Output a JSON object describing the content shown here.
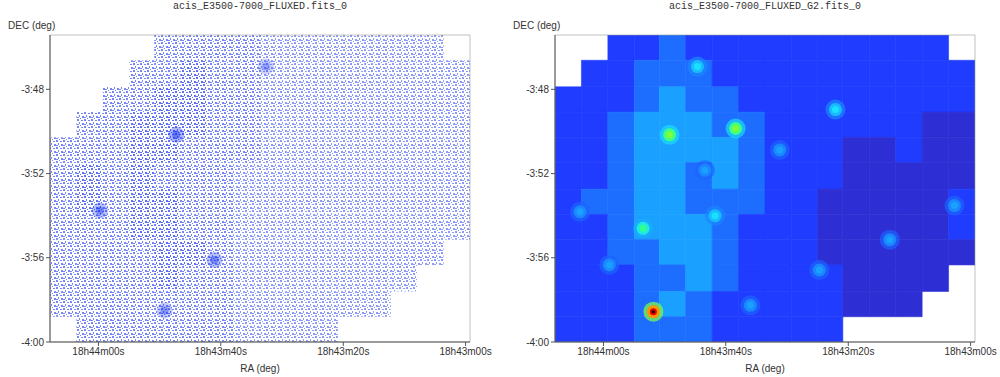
{
  "chart_data": [
    {
      "type": "heatmap",
      "title": "acis_E3500-7000_FLUXED.fits_0",
      "x_label": "RA (deg)",
      "y_label": "DEC (deg)",
      "color": "#1a35f0",
      "xlim": [
        281.033,
        280.747
      ],
      "ylim": [
        -4.0,
        -3.757
      ],
      "xticks": [
        {
          "value": 281.0,
          "label": "18h44m00s"
        },
        {
          "value": 280.9167,
          "label": "18h43m40s"
        },
        {
          "value": 280.8333,
          "label": "18h43m20s"
        },
        {
          "value": 280.75,
          "label": "18h43m00s"
        }
      ],
      "yticks": [
        {
          "value": -3.8,
          "label": "-3:48"
        },
        {
          "value": -3.8667,
          "label": "-3:52"
        },
        {
          "value": -3.9333,
          "label": "-3:56"
        },
        {
          "value": -4.0,
          "label": "-4:00"
        }
      ],
      "value_range": [
        0,
        10
      ],
      "x_edges": [
        281.033,
        281.015,
        280.997,
        280.979,
        280.962,
        280.944,
        280.926,
        280.908,
        280.89,
        280.872,
        280.854,
        280.837,
        280.819,
        280.801,
        280.783,
        280.765,
        280.747
      ],
      "y_edges": [
        -3.757,
        -3.777,
        -3.798,
        -3.818,
        -3.838,
        -3.858,
        -3.879,
        -3.899,
        -3.919,
        -3.939,
        -3.96,
        -3.98,
        -4.0
      ],
      "cells": [
        [
          null,
          null,
          null,
          null,
          6,
          6,
          6,
          6,
          5,
          5,
          5,
          5,
          5,
          5,
          5,
          null
        ],
        [
          null,
          null,
          null,
          6,
          6,
          7,
          6,
          6,
          5,
          5,
          5,
          5,
          5,
          5,
          5,
          5
        ],
        [
          null,
          null,
          6,
          6,
          7,
          7,
          6,
          6,
          5,
          5,
          5,
          5,
          5,
          5,
          5,
          5
        ],
        [
          null,
          6,
          6,
          7,
          7,
          7,
          6,
          6,
          5,
          5,
          5,
          5,
          5,
          5,
          5,
          5
        ],
        [
          6,
          6,
          6,
          7,
          7,
          6,
          6,
          6,
          5,
          5,
          5,
          5,
          5,
          5,
          5,
          5
        ],
        [
          6,
          7,
          6,
          7,
          6,
          6,
          6,
          5,
          5,
          5,
          5,
          5,
          5,
          5,
          5,
          5
        ],
        [
          6,
          7,
          6,
          7,
          7,
          6,
          6,
          5,
          5,
          5,
          5,
          5,
          5,
          5,
          5,
          5
        ],
        [
          6,
          6,
          6,
          7,
          7,
          6,
          6,
          5,
          5,
          5,
          5,
          5,
          5,
          5,
          5,
          5
        ],
        [
          6,
          6,
          6,
          6,
          7,
          7,
          6,
          5,
          5,
          5,
          5,
          5,
          5,
          5,
          5,
          null
        ],
        [
          6,
          6,
          6,
          6,
          7,
          6,
          6,
          5,
          5,
          5,
          5,
          5,
          5,
          5,
          null,
          null
        ],
        [
          6,
          6,
          6,
          6,
          6,
          6,
          6,
          5,
          5,
          5,
          5,
          5,
          5,
          null,
          null,
          null
        ],
        [
          null,
          6,
          6,
          6,
          6,
          6,
          6,
          5,
          5,
          5,
          5,
          null,
          null,
          null,
          null,
          null
        ]
      ],
      "sources": [
        {
          "ra": 280.947,
          "dec": -3.836,
          "value": 8
        },
        {
          "ra": 280.999,
          "dec": -3.896,
          "value": 7
        },
        {
          "ra": 280.921,
          "dec": -3.935,
          "value": 7
        },
        {
          "ra": 280.955,
          "dec": -3.975,
          "value": 6
        },
        {
          "ra": 280.886,
          "dec": -3.782,
          "value": 5
        }
      ]
    },
    {
      "type": "heatmap",
      "title": "acis_E3500-7000_FLUXED_G2.fits_0",
      "x_label": "RA (deg)",
      "y_label": "DEC (deg)",
      "xlim": [
        281.033,
        280.747
      ],
      "ylim": [
        -4.0,
        -3.757
      ],
      "xticks": [
        {
          "value": 281.0,
          "label": "18h44m00s"
        },
        {
          "value": 280.9167,
          "label": "18h43m40s"
        },
        {
          "value": 280.8333,
          "label": "18h43m20s"
        },
        {
          "value": 280.75,
          "label": "18h43m00s"
        }
      ],
      "yticks": [
        {
          "value": -3.8,
          "label": "-3:48"
        },
        {
          "value": -3.8667,
          "label": "-3:52"
        },
        {
          "value": -3.9333,
          "label": "-3:56"
        },
        {
          "value": -4.0,
          "label": "-4:00"
        }
      ],
      "value_range": [
        0,
        10
      ],
      "x_edges": [
        281.033,
        281.015,
        280.997,
        280.979,
        280.962,
        280.944,
        280.926,
        280.908,
        280.89,
        280.872,
        280.854,
        280.837,
        280.819,
        280.801,
        280.783,
        280.765,
        280.747
      ],
      "y_edges": [
        -3.757,
        -3.777,
        -3.798,
        -3.818,
        -3.838,
        -3.858,
        -3.879,
        -3.899,
        -3.919,
        -3.939,
        -3.96,
        -3.98,
        -4.0
      ],
      "cells": [
        [
          null,
          null,
          2,
          2,
          3,
          2,
          2,
          2,
          2,
          2,
          2,
          2,
          2,
          2,
          2,
          null
        ],
        [
          null,
          2,
          2,
          3,
          3,
          3,
          2,
          2,
          2,
          2,
          2,
          2,
          2,
          2,
          2,
          2
        ],
        [
          2,
          2,
          2,
          3,
          4,
          3,
          3,
          2,
          2,
          2,
          2,
          2,
          2,
          2,
          2,
          2
        ],
        [
          2,
          2,
          3,
          4,
          4,
          4,
          3,
          3,
          2,
          2,
          2,
          2,
          2,
          2,
          1,
          1
        ],
        [
          2,
          2,
          3,
          4,
          4,
          4,
          4,
          3,
          2,
          2,
          2,
          1,
          1,
          2,
          1,
          1
        ],
        [
          2,
          2,
          3,
          4,
          4,
          3,
          4,
          3,
          2,
          2,
          2,
          1,
          1,
          1,
          1,
          1
        ],
        [
          2,
          3,
          3,
          4,
          4,
          3,
          3,
          3,
          2,
          2,
          1,
          1,
          1,
          1,
          1,
          2
        ],
        [
          2,
          2,
          3,
          4,
          4,
          4,
          3,
          2,
          2,
          2,
          1,
          1,
          1,
          1,
          1,
          2
        ],
        [
          2,
          2,
          3,
          3,
          4,
          4,
          3,
          2,
          2,
          2,
          1,
          1,
          1,
          1,
          1,
          1
        ],
        [
          2,
          2,
          2,
          3,
          3,
          4,
          3,
          2,
          2,
          2,
          2,
          1,
          1,
          1,
          1,
          null
        ],
        [
          2,
          2,
          2,
          3,
          4,
          3,
          2,
          2,
          2,
          2,
          2,
          1,
          1,
          1,
          null,
          null
        ],
        [
          2,
          2,
          2,
          3,
          3,
          3,
          2,
          2,
          2,
          2,
          2,
          null,
          null,
          null,
          null,
          null
        ]
      ],
      "sources": [
        {
          "ra": 280.966,
          "dec": -3.976,
          "value": 10
        },
        {
          "ra": 280.955,
          "dec": -3.836,
          "value": 7
        },
        {
          "ra": 280.91,
          "dec": -3.831,
          "value": 7
        },
        {
          "ra": 280.936,
          "dec": -3.782,
          "value": 5
        },
        {
          "ra": 280.842,
          "dec": -3.816,
          "value": 5
        },
        {
          "ra": 280.973,
          "dec": -3.91,
          "value": 6
        },
        {
          "ra": 280.761,
          "dec": -3.892,
          "value": 4
        },
        {
          "ra": 281.016,
          "dec": -3.897,
          "value": 4
        },
        {
          "ra": 280.931,
          "dec": -3.864,
          "value": 4
        },
        {
          "ra": 280.996,
          "dec": -3.939,
          "value": 4
        },
        {
          "ra": 280.88,
          "dec": -3.848,
          "value": 4
        },
        {
          "ra": 280.853,
          "dec": -3.943,
          "value": 4
        },
        {
          "ra": 280.805,
          "dec": -3.919,
          "value": 4
        },
        {
          "ra": 280.9,
          "dec": -3.971,
          "value": 4
        },
        {
          "ra": 280.924,
          "dec": -3.9,
          "value": 5
        }
      ]
    }
  ]
}
